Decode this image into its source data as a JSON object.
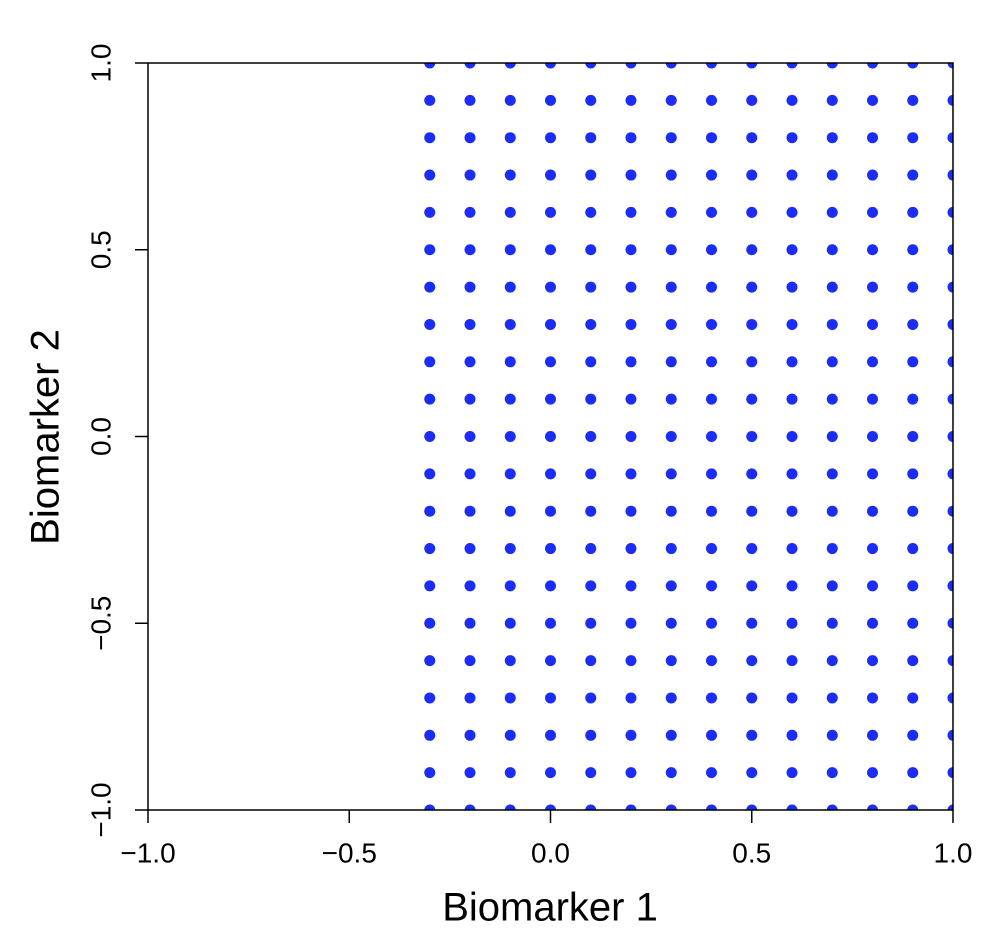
{
  "chart_data": {
    "type": "scatter",
    "xlabel": "Biomarker 1",
    "ylabel": "Biomarker 2",
    "color": "#1a2cf5",
    "xlim": [
      -1,
      1
    ],
    "ylim": [
      -1,
      1
    ],
    "xticks": [
      {
        "value": -1,
        "label": "−1.0"
      },
      {
        "value": -0.5,
        "label": "−0.5"
      },
      {
        "value": 0,
        "label": "0.0"
      },
      {
        "value": 0.5,
        "label": "0.5"
      },
      {
        "value": 1,
        "label": "1.0"
      }
    ],
    "yticks": [
      {
        "value": -1,
        "label": "−1.0"
      },
      {
        "value": -0.5,
        "label": "−0.5"
      },
      {
        "value": 0,
        "label": "0.0"
      },
      {
        "value": 0.5,
        "label": "0.5"
      },
      {
        "value": 1,
        "label": "1.0"
      }
    ],
    "x": [
      -0.3,
      -0.3,
      -0.3,
      -0.3,
      -0.3,
      -0.3,
      -0.3,
      -0.3,
      -0.3,
      -0.3,
      -0.3,
      -0.3,
      -0.3,
      -0.3,
      -0.3,
      -0.3,
      -0.3,
      -0.3,
      -0.3,
      -0.3,
      -0.3,
      -0.2,
      -0.2,
      -0.2,
      -0.2,
      -0.2,
      -0.2,
      -0.2,
      -0.2,
      -0.2,
      -0.2,
      -0.2,
      -0.2,
      -0.2,
      -0.2,
      -0.2,
      -0.2,
      -0.2,
      -0.2,
      -0.2,
      -0.2,
      -0.2,
      -0.1,
      -0.1,
      -0.1,
      -0.1,
      -0.1,
      -0.1,
      -0.1,
      -0.1,
      -0.1,
      -0.1,
      -0.1,
      -0.1,
      -0.1,
      -0.1,
      -0.1,
      -0.1,
      -0.1,
      -0.1,
      -0.1,
      -0.1,
      -0.1,
      0,
      0,
      0,
      0,
      0,
      0,
      0,
      0,
      0,
      0,
      0,
      0,
      0,
      0,
      0,
      0,
      0,
      0,
      0,
      0,
      0,
      0.1,
      0.1,
      0.1,
      0.1,
      0.1,
      0.1,
      0.1,
      0.1,
      0.1,
      0.1,
      0.1,
      0.1,
      0.1,
      0.1,
      0.1,
      0.1,
      0.1,
      0.1,
      0.1,
      0.1,
      0.1,
      0.2,
      0.2,
      0.2,
      0.2,
      0.2,
      0.2,
      0.2,
      0.2,
      0.2,
      0.2,
      0.2,
      0.2,
      0.2,
      0.2,
      0.2,
      0.2,
      0.2,
      0.2,
      0.2,
      0.2,
      0.2,
      0.3,
      0.3,
      0.3,
      0.3,
      0.3,
      0.3,
      0.3,
      0.3,
      0.3,
      0.3,
      0.3,
      0.3,
      0.3,
      0.3,
      0.3,
      0.3,
      0.3,
      0.3,
      0.3,
      0.3,
      0.3,
      0.4,
      0.4,
      0.4,
      0.4,
      0.4,
      0.4,
      0.4,
      0.4,
      0.4,
      0.4,
      0.4,
      0.4,
      0.4,
      0.4,
      0.4,
      0.4,
      0.4,
      0.4,
      0.4,
      0.4,
      0.4,
      0.5,
      0.5,
      0.5,
      0.5,
      0.5,
      0.5,
      0.5,
      0.5,
      0.5,
      0.5,
      0.5,
      0.5,
      0.5,
      0.5,
      0.5,
      0.5,
      0.5,
      0.5,
      0.5,
      0.5,
      0.5,
      0.6,
      0.6,
      0.6,
      0.6,
      0.6,
      0.6,
      0.6,
      0.6,
      0.6,
      0.6,
      0.6,
      0.6,
      0.6,
      0.6,
      0.6,
      0.6,
      0.6,
      0.6,
      0.6,
      0.6,
      0.6,
      0.7,
      0.7,
      0.7,
      0.7,
      0.7,
      0.7,
      0.7,
      0.7,
      0.7,
      0.7,
      0.7,
      0.7,
      0.7,
      0.7,
      0.7,
      0.7,
      0.7,
      0.7,
      0.7,
      0.7,
      0.7,
      0.8,
      0.8,
      0.8,
      0.8,
      0.8,
      0.8,
      0.8,
      0.8,
      0.8,
      0.8,
      0.8,
      0.8,
      0.8,
      0.8,
      0.8,
      0.8,
      0.8,
      0.8,
      0.8,
      0.8,
      0.8,
      0.9,
      0.9,
      0.9,
      0.9,
      0.9,
      0.9,
      0.9,
      0.9,
      0.9,
      0.9,
      0.9,
      0.9,
      0.9,
      0.9,
      0.9,
      0.9,
      0.9,
      0.9,
      0.9,
      0.9,
      0.9,
      1,
      1,
      1,
      1,
      1,
      1,
      1,
      1,
      1,
      1,
      1,
      1,
      1,
      1,
      1,
      1,
      1,
      1,
      1,
      1,
      1
    ],
    "y": [
      -1,
      -0.9,
      -0.8,
      -0.7,
      -0.6,
      -0.5,
      -0.4,
      -0.3,
      -0.2,
      -0.1,
      0,
      0.1,
      0.2,
      0.3,
      0.4,
      0.5,
      0.6,
      0.7,
      0.8,
      0.9,
      1,
      -1,
      -0.9,
      -0.8,
      -0.7,
      -0.6,
      -0.5,
      -0.4,
      -0.3,
      -0.2,
      -0.1,
      0,
      0.1,
      0.2,
      0.3,
      0.4,
      0.5,
      0.6,
      0.7,
      0.8,
      0.9,
      1,
      -1,
      -0.9,
      -0.8,
      -0.7,
      -0.6,
      -0.5,
      -0.4,
      -0.3,
      -0.2,
      -0.1,
      0,
      0.1,
      0.2,
      0.3,
      0.4,
      0.5,
      0.6,
      0.7,
      0.8,
      0.9,
      1,
      -1,
      -0.9,
      -0.8,
      -0.7,
      -0.6,
      -0.5,
      -0.4,
      -0.3,
      -0.2,
      -0.1,
      0,
      0.1,
      0.2,
      0.3,
      0.4,
      0.5,
      0.6,
      0.7,
      0.8,
      0.9,
      1,
      -1,
      -0.9,
      -0.8,
      -0.7,
      -0.6,
      -0.5,
      -0.4,
      -0.3,
      -0.2,
      -0.1,
      0,
      0.1,
      0.2,
      0.3,
      0.4,
      0.5,
      0.6,
      0.7,
      0.8,
      0.9,
      1,
      -1,
      -0.9,
      -0.8,
      -0.7,
      -0.6,
      -0.5,
      -0.4,
      -0.3,
      -0.2,
      -0.1,
      0,
      0.1,
      0.2,
      0.3,
      0.4,
      0.5,
      0.6,
      0.7,
      0.8,
      0.9,
      1,
      -1,
      -0.9,
      -0.8,
      -0.7,
      -0.6,
      -0.5,
      -0.4,
      -0.3,
      -0.2,
      -0.1,
      0,
      0.1,
      0.2,
      0.3,
      0.4,
      0.5,
      0.6,
      0.7,
      0.8,
      0.9,
      1,
      -1,
      -0.9,
      -0.8,
      -0.7,
      -0.6,
      -0.5,
      -0.4,
      -0.3,
      -0.2,
      -0.1,
      0,
      0.1,
      0.2,
      0.3,
      0.4,
      0.5,
      0.6,
      0.7,
      0.8,
      0.9,
      1,
      -1,
      -0.9,
      -0.8,
      -0.7,
      -0.6,
      -0.5,
      -0.4,
      -0.3,
      -0.2,
      -0.1,
      0,
      0.1,
      0.2,
      0.3,
      0.4,
      0.5,
      0.6,
      0.7,
      0.8,
      0.9,
      1,
      -1,
      -0.9,
      -0.8,
      -0.7,
      -0.6,
      -0.5,
      -0.4,
      -0.3,
      -0.2,
      -0.1,
      0,
      0.1,
      0.2,
      0.3,
      0.4,
      0.5,
      0.6,
      0.7,
      0.8,
      0.9,
      1,
      -1,
      -0.9,
      -0.8,
      -0.7,
      -0.6,
      -0.5,
      -0.4,
      -0.3,
      -0.2,
      -0.1,
      0,
      0.1,
      0.2,
      0.3,
      0.4,
      0.5,
      0.6,
      0.7,
      0.8,
      0.9,
      1,
      -1,
      -0.9,
      -0.8,
      -0.7,
      -0.6,
      -0.5,
      -0.4,
      -0.3,
      -0.2,
      -0.1,
      0,
      0.1,
      0.2,
      0.3,
      0.4,
      0.5,
      0.6,
      0.7,
      0.8,
      0.9,
      1,
      -1,
      -0.9,
      -0.8,
      -0.7,
      -0.6,
      -0.5,
      -0.4,
      -0.3,
      -0.2,
      -0.1,
      0,
      0.1,
      0.2,
      0.3,
      0.4,
      0.5,
      0.6,
      0.7,
      0.8,
      0.9,
      1,
      -1,
      -0.9,
      -0.8,
      -0.7,
      -0.6,
      -0.5,
      -0.4,
      -0.3,
      -0.2,
      -0.1,
      0,
      0.1,
      0.2,
      0.3,
      0.4,
      0.5,
      0.6,
      0.7,
      0.8,
      0.9,
      1
    ]
  }
}
